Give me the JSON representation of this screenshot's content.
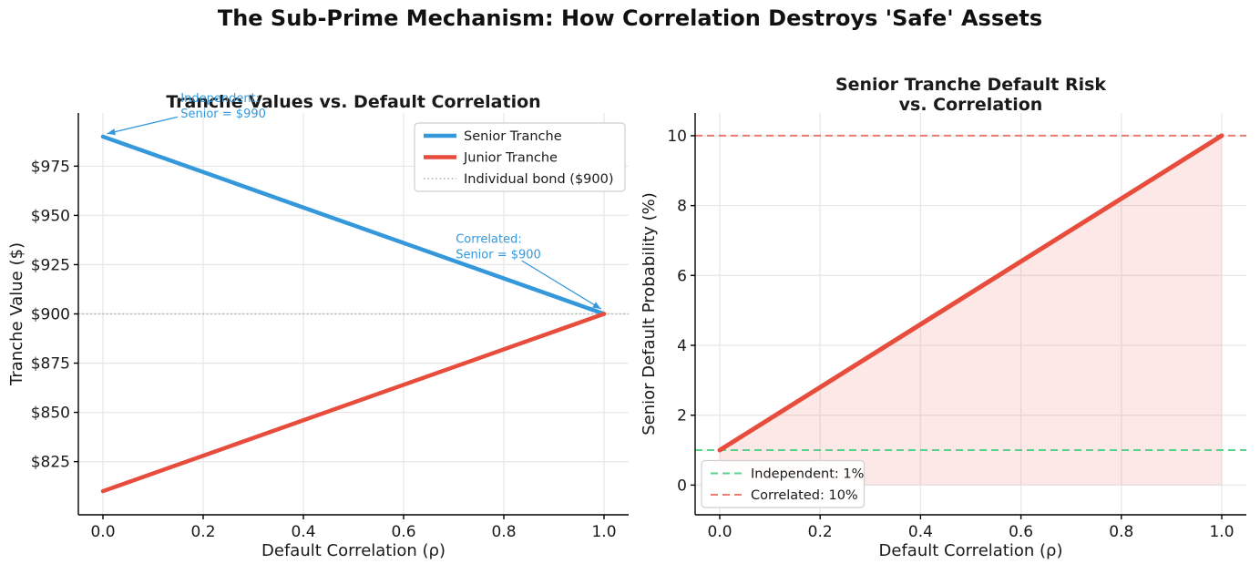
{
  "figure": {
    "suptitle": "The Sub-Prime Mechanism: How Correlation Destroys 'Safe' Assets"
  },
  "colors": {
    "senior_blue": "#3498db",
    "junior_red": "#e74c3c",
    "bond_gray": "#b0b0b0",
    "independent_green": "rgba(46,204,113,0.8)",
    "correlated_red": "rgba(231,76,60,0.72)",
    "risk_fill": "rgba(231,76,60,0.13)",
    "grid": "#e8e8e8",
    "text": "#1a1a1a"
  },
  "chart_data": [
    {
      "id": "tranche-values",
      "type": "line",
      "title": [
        "Tranche Values vs. Default Correlation"
      ],
      "xlabel": "Default Correlation (ρ)",
      "ylabel": "Tranche Value ($)",
      "xlim": [
        -0.05,
        1.05
      ],
      "ylim": [
        798,
        1002
      ],
      "grid": true,
      "xticks": {
        "values": [
          0.0,
          0.2,
          0.4,
          0.6,
          0.8,
          1.0
        ],
        "labels": [
          "0.0",
          "0.2",
          "0.4",
          "0.6",
          "0.8",
          "1.0"
        ]
      },
      "yticks": {
        "values": [
          825,
          850,
          875,
          900,
          925,
          950,
          975
        ],
        "labels": [
          "$825",
          "$850",
          "$875",
          "$900",
          "$925",
          "$950",
          "$975"
        ]
      },
      "series": [
        {
          "name": "Senior Tranche",
          "color": "#3498db",
          "style": "solid",
          "linewidth": 4.5,
          "x": [
            0.0,
            1.0
          ],
          "y": [
            990,
            900
          ]
        },
        {
          "name": "Junior Tranche",
          "color": "#e74c3c",
          "style": "solid",
          "linewidth": 4.5,
          "x": [
            0.0,
            1.0
          ],
          "y": [
            810,
            900
          ]
        }
      ],
      "ref_lines": [
        {
          "name": "Individual bond ($900)",
          "y": 900,
          "color": "#b0b0b0",
          "style": "dotted",
          "linewidth": 1.5
        }
      ],
      "legend": {
        "position": "upper-right",
        "entries": [
          {
            "label": "Senior Tranche",
            "color": "#3498db",
            "style": "solid",
            "linewidth": 4.5
          },
          {
            "label": "Junior Tranche",
            "color": "#e74c3c",
            "style": "solid",
            "linewidth": 4.5
          },
          {
            "label": "Individual bond ($900)",
            "color": "#b0b0b0",
            "style": "dotted",
            "linewidth": 1.5
          }
        ]
      },
      "annotations": [
        {
          "text": [
            "Independent:",
            "Senior = $990"
          ],
          "color": "#3498db",
          "text_xy": [
            0.155,
            1007.5
          ],
          "arrow_from": [
            0.149,
            1000
          ],
          "arrow_to": [
            0.008,
            991.5
          ]
        },
        {
          "text": [
            "Correlated:",
            "Senior = $900"
          ],
          "color": "#3498db",
          "text_xy": [
            0.704,
            936
          ],
          "arrow_from": [
            0.836,
            927
          ],
          "arrow_to": [
            0.994,
            902.5
          ]
        }
      ]
    },
    {
      "id": "senior-default-risk",
      "type": "line",
      "title": [
        "Senior Tranche Default Risk",
        "vs. Correlation"
      ],
      "xlabel": "Default Correlation (ρ)",
      "ylabel": "Senior Default Probability (%)",
      "xlim": [
        -0.05,
        1.05
      ],
      "ylim": [
        -0.85,
        10.65
      ],
      "grid": true,
      "xticks": {
        "values": [
          0.0,
          0.2,
          0.4,
          0.6,
          0.8,
          1.0
        ],
        "labels": [
          "0.0",
          "0.2",
          "0.4",
          "0.6",
          "0.8",
          "1.0"
        ]
      },
      "yticks": {
        "values": [
          0,
          2,
          4,
          6,
          8,
          10
        ],
        "labels": [
          "0",
          "2",
          "4",
          "6",
          "8",
          "10"
        ]
      },
      "series": [
        {
          "name": "Senior default probability",
          "color": "#e74c3c",
          "style": "solid",
          "linewidth": 5,
          "x": [
            0.0,
            1.0
          ],
          "y": [
            1,
            10
          ],
          "fill_to": 0,
          "fill_color": "rgba(231,76,60,0.13)"
        }
      ],
      "ref_lines": [
        {
          "name": "Independent: 1%",
          "y": 1,
          "color": "rgba(46,204,113,0.8)",
          "style": "dashed",
          "linewidth": 2
        },
        {
          "name": "Correlated: 10%",
          "y": 10,
          "color": "rgba(231,76,60,0.72)",
          "style": "dashed",
          "linewidth": 2
        }
      ],
      "legend": {
        "position": "lower-left",
        "entries": [
          {
            "label": "Independent: 1%",
            "color": "rgba(46,204,113,0.8)",
            "style": "dashed",
            "linewidth": 2
          },
          {
            "label": "Correlated: 10%",
            "color": "rgba(231,76,60,0.72)",
            "style": "dashed",
            "linewidth": 2
          }
        ]
      },
      "annotations": []
    }
  ]
}
